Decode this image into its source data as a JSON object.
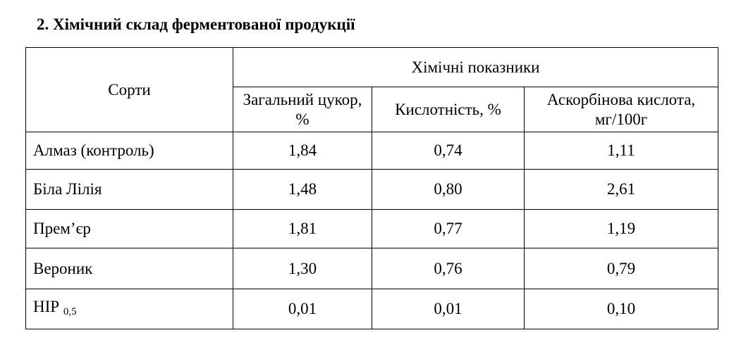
{
  "title": "2. Хімічний склад ферментованої продукції",
  "table": {
    "header": {
      "sort": "Сорти",
      "group": "Хімічні показники",
      "columns": [
        "Загальний цукор, %",
        "Кислотність, %",
        "Аскорбінова кислота, мг/100г"
      ]
    },
    "rows": [
      [
        "Алмаз (контроль)",
        "1,84",
        "0,74",
        "1,11"
      ],
      [
        "Біла Лілія",
        "1,48",
        "0,80",
        "2,61"
      ],
      [
        "Прем’єр",
        "1,81",
        "0,77",
        "1,19"
      ],
      [
        "Вероник",
        "1,30",
        "0,76",
        "0,79"
      ]
    ],
    "lsd": {
      "label": "НІР",
      "sub": "0,5",
      "values": [
        "0,01",
        "0,01",
        "0,10"
      ]
    }
  }
}
